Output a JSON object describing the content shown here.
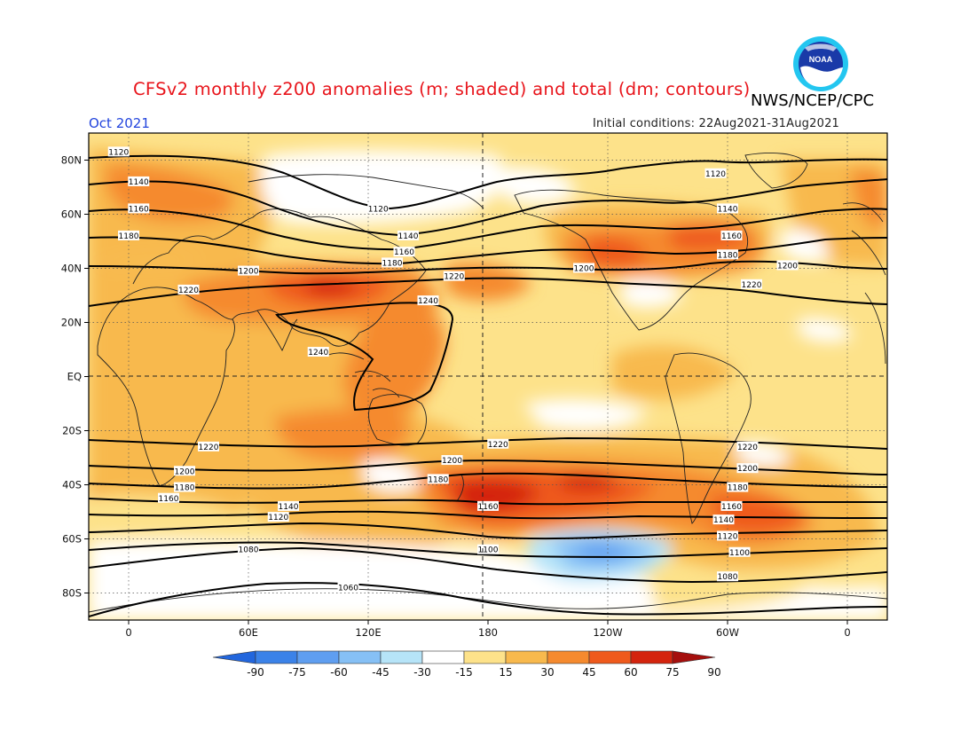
{
  "title": "CFSv2 monthly z200 anomalies (m; shaded) and total (dm; contours)",
  "month": "Oct 2021",
  "initial_conditions": "Initial conditions: 22Aug2021-31Aug2021",
  "agency": "NWS/NCEP/CPC",
  "logo_text": "NOAA",
  "colors": {
    "bin_colors": [
      "#2266dd",
      "#3b82e8",
      "#5f9ef0",
      "#86c0f5",
      "#b6e4f8",
      "#ffffff",
      "#fde28a",
      "#f8b94d",
      "#f58a2e",
      "#ef5a1c",
      "#d4240e",
      "#a50f0d"
    ],
    "coastline": "#222222",
    "contour": "#000000",
    "title": "#e8141b",
    "month": "#2244dd"
  },
  "map": {
    "lat_ticks": [
      "80N",
      "60N",
      "40N",
      "20N",
      "EQ",
      "20S",
      "40S",
      "60S",
      "80S"
    ],
    "lon_ticks": [
      "0",
      "60E",
      "120E",
      "180",
      "120W",
      "60W",
      "0"
    ]
  },
  "colorbar": {
    "levels": [
      "-90",
      "-75",
      "-60",
      "-45",
      "-30",
      "-15",
      "15",
      "30",
      "45",
      "60",
      "75",
      "90"
    ]
  },
  "chart_data": {
    "type": "heatmap",
    "title": "CFSv2 monthly z200 anomalies (m; shaded) and total (dm; contours)",
    "anomaly_levels_m": [
      -90,
      -75,
      -60,
      -45,
      -30,
      -15,
      15,
      30,
      45,
      60,
      75,
      90
    ],
    "contour_interval_dm": 20,
    "contour_levels_dm": [
      1060,
      1080,
      1100,
      1120,
      1140,
      1160,
      1180,
      1200,
      1220,
      1240
    ],
    "contour_labels": [
      {
        "v": "1120",
        "lon": -5,
        "lat": 83
      },
      {
        "v": "1140",
        "lon": 5,
        "lat": 72
      },
      {
        "v": "1160",
        "lon": 5,
        "lat": 62
      },
      {
        "v": "1180",
        "lon": 0,
        "lat": 52
      },
      {
        "v": "1200",
        "lon": 60,
        "lat": 39
      },
      {
        "v": "1220",
        "lon": 30,
        "lat": 32
      },
      {
        "v": "1120",
        "lon": 125,
        "lat": 62
      },
      {
        "v": "1140",
        "lon": 140,
        "lat": 52
      },
      {
        "v": "1160",
        "lon": 138,
        "lat": 46
      },
      {
        "v": "1180",
        "lon": 132,
        "lat": 42
      },
      {
        "v": "1220",
        "lon": 163,
        "lat": 37
      },
      {
        "v": "1200",
        "lon": 228,
        "lat": 40
      },
      {
        "v": "1240",
        "lon": 150,
        "lat": 28
      },
      {
        "v": "1240",
        "lon": 95,
        "lat": 9
      },
      {
        "v": "1120",
        "lon": 294,
        "lat": 75
      },
      {
        "v": "1140",
        "lon": 300,
        "lat": 62
      },
      {
        "v": "1160",
        "lon": 302,
        "lat": 52
      },
      {
        "v": "1180",
        "lon": 300,
        "lat": 45
      },
      {
        "v": "1200",
        "lon": 330,
        "lat": 41
      },
      {
        "v": "1220",
        "lon": 312,
        "lat": 34
      },
      {
        "v": "1220",
        "lon": 40,
        "lat": -26
      },
      {
        "v": "1200",
        "lon": 28,
        "lat": -35
      },
      {
        "v": "1180",
        "lon": 28,
        "lat": -41
      },
      {
        "v": "1160",
        "lon": 20,
        "lat": -45
      },
      {
        "v": "1140",
        "lon": 80,
        "lat": -48
      },
      {
        "v": "1120",
        "lon": 75,
        "lat": -52
      },
      {
        "v": "1080",
        "lon": 60,
        "lat": -64
      },
      {
        "v": "1060",
        "lon": 110,
        "lat": -78
      },
      {
        "v": "1220",
        "lon": 185,
        "lat": -25
      },
      {
        "v": "1200",
        "lon": 162,
        "lat": -31
      },
      {
        "v": "1180",
        "lon": 155,
        "lat": -38
      },
      {
        "v": "1160",
        "lon": 180,
        "lat": -48
      },
      {
        "v": "1100",
        "lon": 180,
        "lat": -64
      },
      {
        "v": "1220",
        "lon": 310,
        "lat": -26
      },
      {
        "v": "1200",
        "lon": 310,
        "lat": -34
      },
      {
        "v": "1180",
        "lon": 305,
        "lat": -41
      },
      {
        "v": "1160",
        "lon": 302,
        "lat": -48
      },
      {
        "v": "1140",
        "lon": 298,
        "lat": -53
      },
      {
        "v": "1120",
        "lon": 300,
        "lat": -59
      },
      {
        "v": "1100",
        "lon": 306,
        "lat": -65
      },
      {
        "v": "1080",
        "lon": 300,
        "lat": -74
      }
    ]
  }
}
